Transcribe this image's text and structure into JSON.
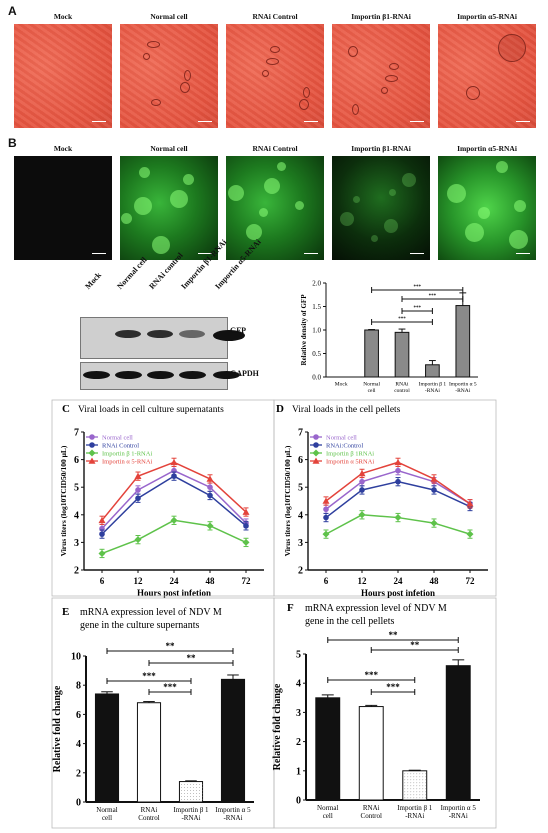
{
  "panelA": {
    "letter": "A",
    "labels": [
      "Mock",
      "Normal cell",
      "RNAi Control",
      "Importin β1-RNAi",
      "Importin α5-RNAi"
    ]
  },
  "panelB": {
    "letter": "B",
    "labels": [
      "Mock",
      "Normal cell",
      "RNAi Control",
      "Importin β1-RNAi",
      "Importin α5-RNAi"
    ],
    "blot_lanes": [
      "Mock",
      "Normal cell",
      "RNAi control",
      "Importin β1-RNAi",
      "Importin α5-RNAi"
    ],
    "blot_bands": [
      "GFP",
      "GAPDH"
    ]
  },
  "colors": {
    "normal_cell": "#9966cc",
    "rnai_control": "#2e3f9e",
    "importin_b1": "#5ec24a",
    "importin_a5": "#e3433b",
    "bar_gray": "#8a8a8a"
  },
  "chart_data": [
    {
      "id": "B-density",
      "type": "bar",
      "ylabel": "Relative density of GFP",
      "categories": [
        "Mock",
        "Normal cell",
        "RNAi control",
        "Importin β 1 -RNAi",
        "Importin α 5 -RNAi"
      ],
      "values": [
        0,
        1.0,
        0.95,
        0.26,
        1.52
      ],
      "errors": [
        0,
        0.01,
        0.07,
        0.09,
        0.27
      ],
      "ylim": [
        0,
        2.0
      ],
      "yticks": [
        "0.0",
        "0.5",
        "1.0",
        "1.5",
        "2.0"
      ],
      "significance": [
        "***",
        "***",
        "***",
        "***"
      ]
    },
    {
      "id": "C",
      "letter": "C",
      "type": "line",
      "title": "Viral loads in cell culture supernatants",
      "xlabel": "Hours post infetion",
      "ylabel": "Virus titers (log10TCID50/100 μL)",
      "x": [
        "6",
        "12",
        "24",
        "48",
        "72"
      ],
      "ylim": [
        2,
        7
      ],
      "yticks": [
        "2",
        "3",
        "4",
        "5",
        "6",
        "7"
      ],
      "series": [
        {
          "name": "Normal cell",
          "values": [
            3.5,
            4.9,
            5.6,
            5.0,
            3.7
          ]
        },
        {
          "name": "RNAi Control",
          "values": [
            3.3,
            4.6,
            5.4,
            4.7,
            3.6
          ]
        },
        {
          "name": "Importin β 1-RNAi",
          "values": [
            2.6,
            3.1,
            3.8,
            3.6,
            3.0
          ]
        },
        {
          "name": "Importin α 5-RNAi",
          "values": [
            3.8,
            5.4,
            5.9,
            5.3,
            4.1
          ]
        }
      ]
    },
    {
      "id": "D",
      "letter": "D",
      "type": "line",
      "title": "Viral loads in the cell pellets",
      "xlabel": "Hours post infetion",
      "ylabel": "Virus titers (log10TCID50/100 μL)",
      "x": [
        "6",
        "12",
        "24",
        "48",
        "72"
      ],
      "ylim": [
        2,
        7
      ],
      "yticks": [
        "2",
        "3",
        "4",
        "5",
        "6",
        "7"
      ],
      "series": [
        {
          "name": "Normal cell",
          "values": [
            4.2,
            5.2,
            5.6,
            5.2,
            4.4
          ]
        },
        {
          "name": "RNAi:Control",
          "values": [
            3.9,
            4.9,
            5.2,
            4.9,
            4.3
          ]
        },
        {
          "name": "Importin β 1RNAi",
          "values": [
            3.3,
            4.0,
            3.9,
            3.7,
            3.3
          ]
        },
        {
          "name": "Importin α 5RNAi",
          "values": [
            4.5,
            5.5,
            5.9,
            5.3,
            4.4
          ]
        }
      ]
    },
    {
      "id": "E",
      "letter": "E",
      "type": "bar",
      "title": "mRNA expression level of NDV M gene in the culture supernants",
      "ylabel": "Relative fold change",
      "categories": [
        "Normal cell",
        "RNAi Control",
        "Importin β 1 -RNAi",
        "Importin α 5 -RNAi"
      ],
      "values": [
        7.4,
        6.8,
        1.4,
        8.4
      ],
      "errors": [
        0.15,
        0.08,
        0.05,
        0.3
      ],
      "ylim": [
        0,
        10
      ],
      "yticks": [
        "0",
        "2",
        "4",
        "6",
        "8",
        "10"
      ],
      "significance": [
        "**",
        "**",
        "***",
        "***"
      ]
    },
    {
      "id": "F",
      "letter": "F",
      "type": "bar",
      "title": "mRNA expression level of NDV M gene in the cell pellets",
      "ylabel": "Relative fold change",
      "categories": [
        "Normal cell",
        "RNAi Control",
        "Importin β 1 -RNAi",
        "Importin α 5 -RNAi"
      ],
      "values": [
        3.5,
        3.2,
        1.0,
        4.6
      ],
      "errors": [
        0.1,
        0.04,
        0.02,
        0.2
      ],
      "ylim": [
        0,
        5
      ],
      "yticks": [
        "0",
        "1",
        "2",
        "3",
        "4",
        "5"
      ],
      "significance": [
        "**",
        "**",
        "***",
        "***"
      ]
    }
  ]
}
